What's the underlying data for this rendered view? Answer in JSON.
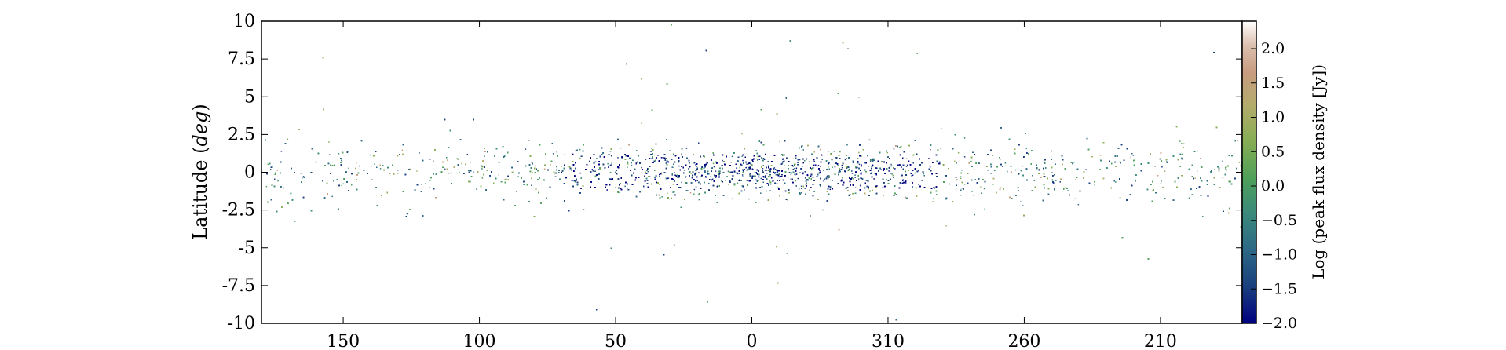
{
  "chart_data": {
    "type": "scatter",
    "title": "",
    "xlabel": "",
    "ylabel": "Latitude (",
    "ylabel_unit": "deg",
    "ylabel_close": ")",
    "ylim": [
      -10,
      10
    ],
    "yticks": [
      "10",
      "7.5",
      "5",
      "2.5",
      "0",
      "-2.5",
      "-5",
      "-7.5",
      "-10"
    ],
    "ytick_values": [
      10,
      7.5,
      5,
      2.5,
      0,
      -2.5,
      -5,
      -7.5,
      -10
    ],
    "x_axis": {
      "description": "Galactic longitude, decreasing to the right, wrapping through 0/360",
      "range_deg": [
        180,
        180
      ],
      "tick_labels": [
        "150",
        "100",
        "50",
        "0",
        "310",
        "260",
        "210"
      ],
      "tick_values": [
        150,
        100,
        50,
        0,
        310,
        260,
        210
      ]
    },
    "colorbar": {
      "label": "Log (peak flux density [Jy])",
      "range": [
        -2.0,
        2.4
      ],
      "tick_labels": [
        "2.0",
        "1.5",
        "1.0",
        "0.5",
        "0.0",
        "−0.5",
        "−1.0",
        "−1.5",
        "−2.0"
      ],
      "tick_values": [
        2.0,
        1.5,
        1.0,
        0.5,
        0.0,
        -0.5,
        -1.0,
        -1.5,
        -2.0
      ],
      "colormap": "gist_earth",
      "colors": [
        "#000080",
        "#1a3f7e",
        "#2e6a86",
        "#3c8b7a",
        "#4fa05a",
        "#86ad55",
        "#b3ac6b",
        "#c89b80",
        "#dbbfae",
        "#ffffff"
      ]
    },
    "series": [
      {
        "marker_size": 1.5,
        "density_profile": "sources concentrated within |b| < 2.5 deg, densest near l = 0 to 30 and 330 to 360 deg, sparser toward l = 180 deg; scattered outliers up to |b| = 10 deg",
        "approx_point_count": 12000
      }
    ]
  }
}
